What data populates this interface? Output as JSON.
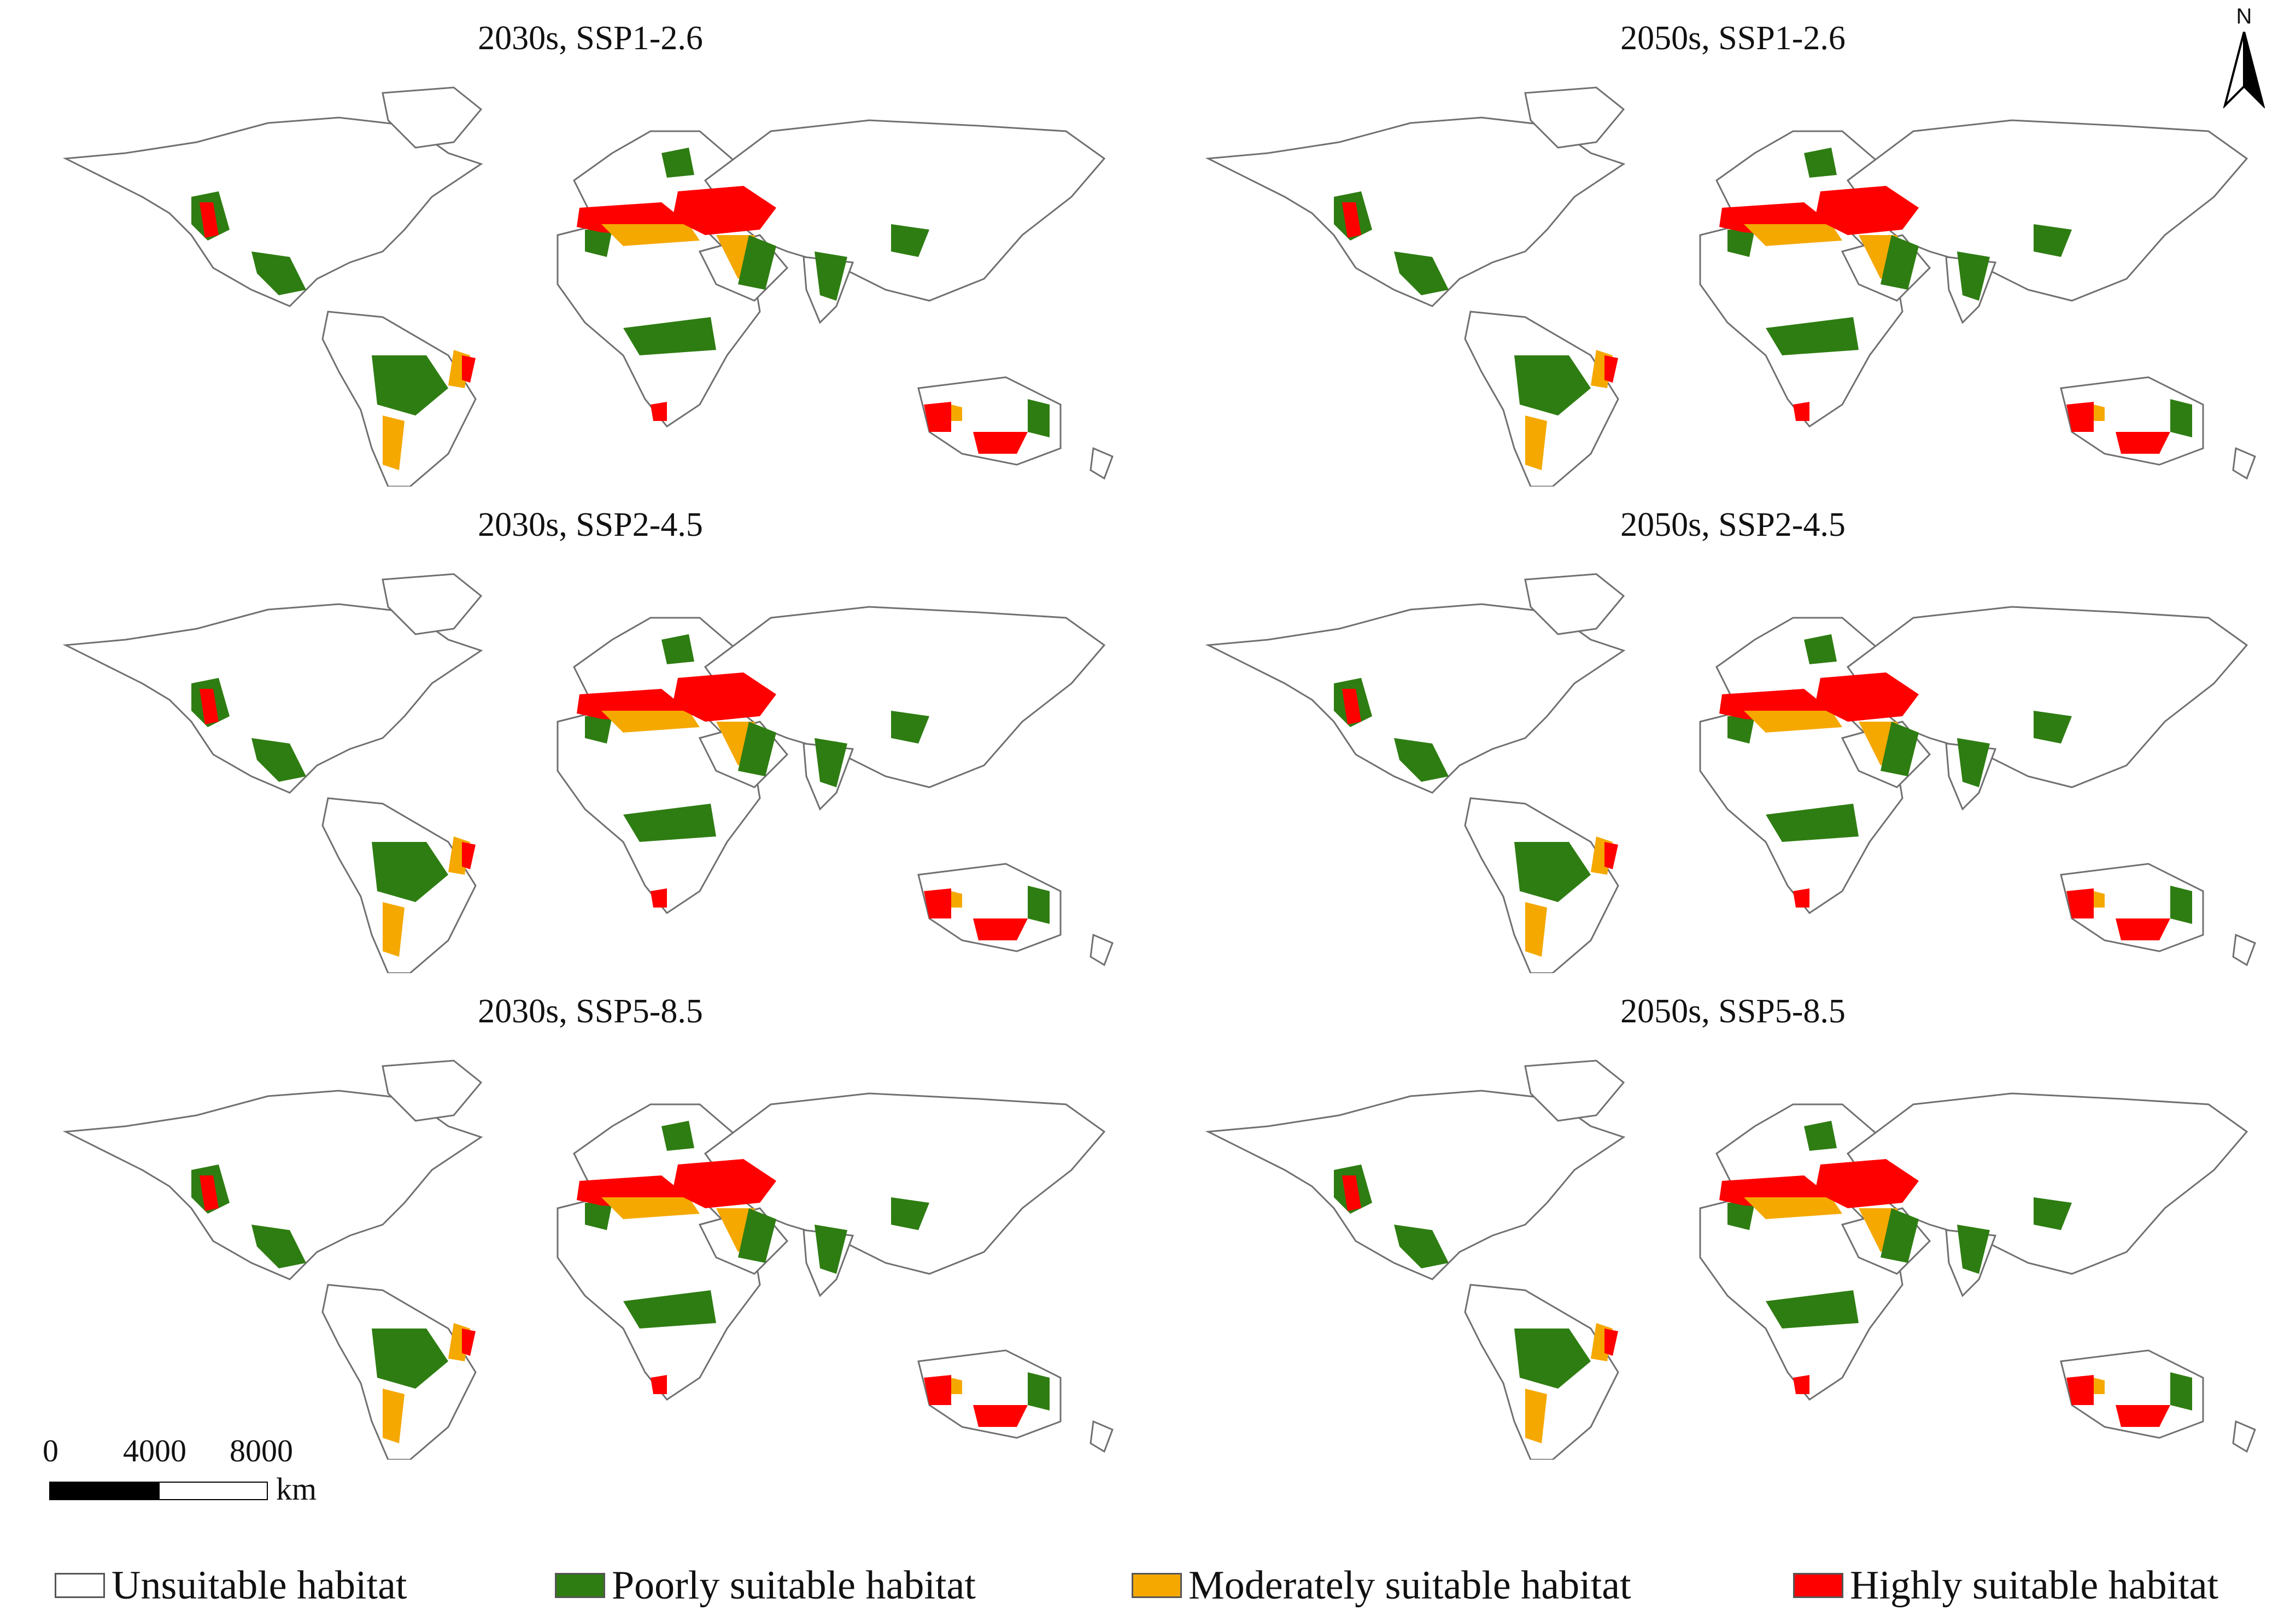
{
  "panels": [
    {
      "title": "2030s, SSP1-2.6"
    },
    {
      "title": "2050s, SSP1-2.6"
    },
    {
      "title": "2030s, SSP2-4.5"
    },
    {
      "title": "2050s, SSP2-4.5"
    },
    {
      "title": "2030s, SSP5-8.5"
    },
    {
      "title": "2050s, SSP5-8.5"
    }
  ],
  "north_arrow": {
    "label": "N"
  },
  "scale_bar": {
    "ticks": [
      "0",
      "4000",
      "8000"
    ],
    "unit": "km"
  },
  "legend": [
    {
      "label": "Unsuitable habitat",
      "color": "#ffffff"
    },
    {
      "label": "Poorly suitable habitat",
      "color": "#2e7d12"
    },
    {
      "label": "Moderately suitable habitat",
      "color": "#f5a800"
    },
    {
      "label": "Highly suitable habitat",
      "color": "#ff0000"
    }
  ],
  "colors": {
    "land_outline": "#707070",
    "unsuitable": "#ffffff",
    "poor": "#2e7d12",
    "moderate": "#f5a800",
    "high": "#ff0000"
  }
}
